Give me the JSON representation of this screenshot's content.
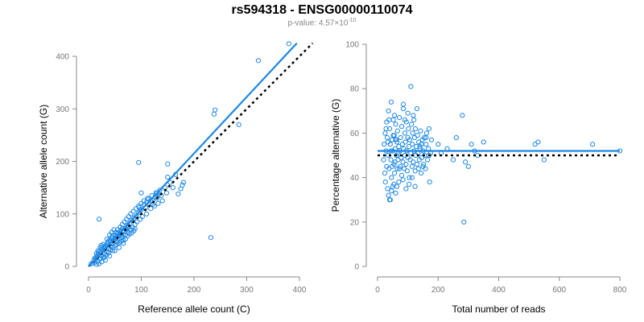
{
  "title": "rs594318 - ENSG00000110074",
  "subtitle": {
    "prefix": "p-value: 4.57",
    "times": "×",
    "base": "10",
    "exponent": "-10"
  },
  "colors": {
    "points": "#1e88e5",
    "fit_line": "#1e88e5",
    "reference_line": "#000000",
    "axis": "#888888"
  },
  "chart_data": [
    {
      "type": "scatter",
      "xlabel": "Reference allele count (C)",
      "ylabel": "Alternative allele count (G)",
      "xlim": [
        0,
        400
      ],
      "ylim": [
        0,
        400
      ],
      "xticks": [
        0,
        100,
        200,
        300,
        400
      ],
      "yticks": [
        0,
        100,
        200,
        300,
        400
      ],
      "grid": false,
      "fit_line": {
        "x": [
          0,
          395
        ],
        "y": [
          0,
          425
        ],
        "style": "solid"
      },
      "reference_line": {
        "x": [
          0,
          425
        ],
        "y": [
          0,
          425
        ],
        "style": "dotted"
      },
      "points": [
        [
          5,
          5
        ],
        [
          8,
          6
        ],
        [
          10,
          12
        ],
        [
          12,
          8
        ],
        [
          14,
          15
        ],
        [
          15,
          4
        ],
        [
          16,
          18
        ],
        [
          18,
          10
        ],
        [
          20,
          22
        ],
        [
          20,
          5
        ],
        [
          22,
          14
        ],
        [
          23,
          28
        ],
        [
          25,
          20
        ],
        [
          25,
          9
        ],
        [
          27,
          30
        ],
        [
          28,
          16
        ],
        [
          30,
          35
        ],
        [
          30,
          24
        ],
        [
          32,
          12
        ],
        [
          33,
          40
        ],
        [
          35,
          28
        ],
        [
          36,
          45
        ],
        [
          38,
          33
        ],
        [
          40,
          50
        ],
        [
          40,
          20
        ],
        [
          42,
          38
        ],
        [
          44,
          55
        ],
        [
          45,
          44
        ],
        [
          46,
          30
        ],
        [
          48,
          60
        ],
        [
          50,
          52
        ],
        [
          50,
          40
        ],
        [
          52,
          65
        ],
        [
          54,
          48
        ],
        [
          55,
          70
        ],
        [
          56,
          58
        ],
        [
          58,
          45
        ],
        [
          60,
          75
        ],
        [
          60,
          62
        ],
        [
          62,
          55
        ],
        [
          64,
          80
        ],
        [
          65,
          68
        ],
        [
          66,
          50
        ],
        [
          68,
          85
        ],
        [
          70,
          72
        ],
        [
          70,
          60
        ],
        [
          72,
          90
        ],
        [
          74,
          78
        ],
        [
          75,
          65
        ],
        [
          76,
          95
        ],
        [
          78,
          82
        ],
        [
          80,
          70
        ],
        [
          80,
          100
        ],
        [
          82,
          88
        ],
        [
          84,
          74
        ],
        [
          85,
          105
        ],
        [
          86,
          92
        ],
        [
          88,
          80
        ],
        [
          90,
          110
        ],
        [
          90,
          96
        ],
        [
          92,
          85
        ],
        [
          95,
          115
        ],
        [
          95,
          102
        ],
        [
          98,
          90
        ],
        [
          100,
          120
        ],
        [
          100,
          108
        ],
        [
          102,
          95
        ],
        [
          105,
          125
        ],
        [
          108,
          112
        ],
        [
          110,
          100
        ],
        [
          112,
          130
        ],
        [
          115,
          118
        ],
        [
          118,
          110
        ],
        [
          120,
          135
        ],
        [
          122,
          125
        ],
        [
          125,
          115
        ],
        [
          128,
          140
        ],
        [
          130,
          130
        ],
        [
          132,
          120
        ],
        [
          135,
          145
        ],
        [
          138,
          135
        ],
        [
          140,
          125
        ],
        [
          145,
          150
        ],
        [
          148,
          140
        ],
        [
          150,
          170
        ],
        [
          155,
          160
        ],
        [
          160,
          150
        ],
        [
          165,
          175
        ],
        [
          170,
          138
        ],
        [
          175,
          148
        ],
        [
          178,
          155
        ],
        [
          180,
          160
        ],
        [
          150,
          195
        ],
        [
          95,
          198
        ],
        [
          232,
          55
        ],
        [
          238,
          290
        ],
        [
          240,
          298
        ],
        [
          285,
          270
        ],
        [
          322,
          392
        ],
        [
          380,
          424
        ],
        [
          20,
          90
        ],
        [
          15,
          25
        ],
        [
          18,
          30
        ],
        [
          25,
          35
        ],
        [
          30,
          18
        ],
        [
          34,
          22
        ],
        [
          38,
          26
        ],
        [
          42,
          32
        ],
        [
          46,
          36
        ],
        [
          50,
          30
        ],
        [
          54,
          42
        ],
        [
          58,
          36
        ],
        [
          62,
          48
        ],
        [
          66,
          44
        ],
        [
          70,
          52
        ],
        [
          74,
          58
        ],
        [
          78,
          62
        ],
        [
          82,
          64
        ],
        [
          86,
          68
        ],
        [
          88,
          72
        ],
        [
          40,
          60
        ],
        [
          44,
          65
        ],
        [
          48,
          70
        ],
        [
          52,
          58
        ],
        [
          56,
          64
        ],
        [
          60,
          68
        ],
        [
          64,
          72
        ],
        [
          68,
          66
        ],
        [
          72,
          70
        ],
        [
          76,
          74
        ],
        [
          35,
          52
        ],
        [
          38,
          48
        ],
        [
          42,
          46
        ],
        [
          45,
          58
        ],
        [
          48,
          50
        ],
        [
          52,
          54
        ],
        [
          55,
          62
        ],
        [
          58,
          52
        ],
        [
          62,
          60
        ],
        [
          65,
          56
        ],
        [
          28,
          42
        ],
        [
          30,
          38
        ],
        [
          32,
          36
        ],
        [
          26,
          32
        ],
        [
          24,
          40
        ],
        [
          22,
          36
        ],
        [
          20,
          28
        ],
        [
          18,
          24
        ],
        [
          16,
          20
        ],
        [
          12,
          16
        ],
        [
          110,
          122
        ],
        [
          114,
          128
        ],
        [
          118,
          124
        ],
        [
          122,
          118
        ],
        [
          126,
          132
        ],
        [
          130,
          140
        ],
        [
          134,
          138
        ],
        [
          100,
          140
        ],
        [
          105,
          118
        ],
        [
          96,
          112
        ]
      ]
    },
    {
      "type": "scatter",
      "xlabel": "Total number of reads",
      "ylabel": "Percentage alternative (G)",
      "xlim": [
        0,
        800
      ],
      "ylim": [
        0,
        100
      ],
      "xticks": [
        0,
        200,
        400,
        600,
        800
      ],
      "yticks": [
        0,
        20,
        40,
        60,
        80,
        100
      ],
      "grid": false,
      "fit_line": {
        "x": [
          0,
          800
        ],
        "y": [
          52,
          52
        ],
        "style": "solid"
      },
      "reference_line": {
        "x": [
          0,
          800
        ],
        "y": [
          50,
          50
        ],
        "style": "dotted"
      },
      "points": [
        [
          20,
          48
        ],
        [
          22,
          55
        ],
        [
          24,
          42
        ],
        [
          25,
          60
        ],
        [
          26,
          38
        ],
        [
          28,
          52
        ],
        [
          30,
          65
        ],
        [
          30,
          45
        ],
        [
          32,
          58
        ],
        [
          33,
          35
        ],
        [
          35,
          50
        ],
        [
          36,
          70
        ],
        [
          38,
          44
        ],
        [
          40,
          62
        ],
        [
          40,
          30
        ],
        [
          42,
          55
        ],
        [
          44,
          48
        ],
        [
          45,
          74
        ],
        [
          46,
          40
        ],
        [
          48,
          57
        ],
        [
          50,
          52
        ],
        [
          50,
          36
        ],
        [
          52,
          66
        ],
        [
          54,
          46
        ],
        [
          55,
          59
        ],
        [
          56,
          42
        ],
        [
          58,
          53
        ],
        [
          60,
          64
        ],
        [
          60,
          33
        ],
        [
          62,
          50
        ],
        [
          64,
          56
        ],
        [
          65,
          44
        ],
        [
          66,
          61
        ],
        [
          68,
          48
        ],
        [
          70,
          54
        ],
        [
          70,
          38
        ],
        [
          72,
          67
        ],
        [
          74,
          52
        ],
        [
          75,
          45
        ],
        [
          76,
          58
        ],
        [
          78,
          49
        ],
        [
          80,
          63
        ],
        [
          80,
          41
        ],
        [
          82,
          55
        ],
        [
          84,
          47
        ],
        [
          85,
          71
        ],
        [
          86,
          53
        ],
        [
          88,
          44
        ],
        [
          90,
          60
        ],
        [
          90,
          50
        ],
        [
          92,
          56
        ],
        [
          94,
          46
        ],
        [
          95,
          65
        ],
        [
          96,
          52
        ],
        [
          98,
          43
        ],
        [
          100,
          58
        ],
        [
          100,
          49
        ],
        [
          102,
          62
        ],
        [
          104,
          54
        ],
        [
          105,
          40
        ],
        [
          106,
          57
        ],
        [
          108,
          48
        ],
        [
          110,
          81
        ],
        [
          110,
          51
        ],
        [
          112,
          64
        ],
        [
          114,
          45
        ],
        [
          115,
          55
        ],
        [
          116,
          60
        ],
        [
          118,
          47
        ],
        [
          120,
          52
        ],
        [
          122,
          58
        ],
        [
          124,
          43
        ],
        [
          125,
          62
        ],
        [
          126,
          50
        ],
        [
          128,
          54
        ],
        [
          130,
          46
        ],
        [
          132,
          59
        ],
        [
          134,
          51
        ],
        [
          135,
          44
        ],
        [
          136,
          56
        ],
        [
          138,
          48
        ],
        [
          140,
          53
        ],
        [
          142,
          61
        ],
        [
          144,
          42
        ],
        [
          145,
          55
        ],
        [
          146,
          49
        ],
        [
          148,
          57
        ],
        [
          150,
          52
        ],
        [
          152,
          46
        ],
        [
          154,
          58
        ],
        [
          156,
          50
        ],
        [
          158,
          44
        ],
        [
          160,
          55
        ],
        [
          162,
          60
        ],
        [
          165,
          48
        ],
        [
          168,
          53
        ],
        [
          170,
          62
        ],
        [
          172,
          38
        ],
        [
          175,
          51
        ],
        [
          178,
          57
        ],
        [
          28,
          62
        ],
        [
          34,
          56
        ],
        [
          38,
          66
        ],
        [
          44,
          52
        ],
        [
          48,
          45
        ],
        [
          52,
          59
        ],
        [
          58,
          47
        ],
        [
          62,
          57
        ],
        [
          68,
          51
        ],
        [
          72,
          44
        ],
        [
          36,
          32
        ],
        [
          42,
          30
        ],
        [
          46,
          34
        ],
        [
          54,
          37
        ],
        [
          64,
          36
        ],
        [
          84,
          39
        ],
        [
          94,
          35
        ],
        [
          104,
          37
        ],
        [
          114,
          40
        ],
        [
          124,
          36
        ],
        [
          200,
          55
        ],
        [
          210,
          51
        ],
        [
          230,
          53
        ],
        [
          250,
          48
        ],
        [
          260,
          58
        ],
        [
          280,
          68
        ],
        [
          285,
          20
        ],
        [
          290,
          47
        ],
        [
          300,
          45
        ],
        [
          310,
          55
        ],
        [
          320,
          52
        ],
        [
          330,
          50
        ],
        [
          350,
          56
        ],
        [
          520,
          55
        ],
        [
          530,
          56
        ],
        [
          550,
          48
        ],
        [
          710,
          55
        ],
        [
          800,
          52
        ],
        [
          85,
          73
        ],
        [
          118,
          68
        ],
        [
          130,
          71
        ],
        [
          90,
          66
        ],
        [
          100,
          69
        ],
        [
          56,
          68
        ],
        [
          60,
          57
        ],
        [
          120,
          66
        ],
        [
          140,
          54
        ],
        [
          150,
          45
        ],
        [
          160,
          58
        ],
        [
          170,
          50
        ]
      ]
    }
  ]
}
